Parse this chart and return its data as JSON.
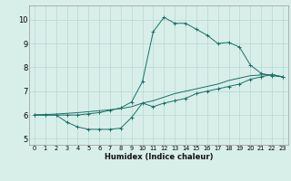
{
  "title": "",
  "xlabel": "Humidex (Indice chaleur)",
  "xlim": [
    -0.5,
    23.5
  ],
  "ylim": [
    4.75,
    10.6
  ],
  "xticks": [
    0,
    1,
    2,
    3,
    4,
    5,
    6,
    7,
    8,
    9,
    10,
    11,
    12,
    13,
    14,
    15,
    16,
    17,
    18,
    19,
    20,
    21,
    22,
    23
  ],
  "yticks": [
    5,
    6,
    7,
    8,
    9,
    10
  ],
  "bg_color": "#d8eee9",
  "line_color": "#1a7068",
  "grid_color": "#b8d8d2",
  "lines": [
    {
      "x": [
        0,
        1,
        2,
        3,
        4,
        5,
        6,
        7,
        8,
        9,
        10,
        11,
        12,
        13,
        14,
        15,
        16,
        17,
        18,
        19,
        20,
        21,
        22,
        23
      ],
      "y": [
        6.0,
        6.0,
        6.0,
        6.0,
        6.0,
        6.05,
        6.1,
        6.2,
        6.3,
        6.55,
        7.4,
        9.5,
        10.1,
        9.85,
        9.85,
        9.6,
        9.35,
        9.0,
        9.05,
        8.85,
        8.1,
        7.75,
        7.65,
        7.6
      ],
      "marker": true,
      "has_markers_at": [
        0,
        1,
        2,
        3,
        4,
        5,
        6,
        7,
        8,
        9,
        10,
        11,
        12,
        13,
        14,
        15,
        16,
        17,
        18,
        19,
        20,
        21,
        22,
        23
      ]
    },
    {
      "x": [
        0,
        1,
        2,
        3,
        4,
        5,
        6,
        7,
        8,
        9,
        10,
        11,
        12,
        13,
        14,
        15,
        16,
        17,
        18,
        19,
        20,
        21,
        22,
        23
      ],
      "y": [
        6.0,
        6.0,
        6.0,
        5.7,
        5.5,
        5.4,
        5.4,
        5.4,
        5.45,
        5.9,
        6.5,
        6.35,
        6.5,
        6.6,
        6.7,
        6.9,
        7.0,
        7.1,
        7.2,
        7.3,
        7.5,
        7.6,
        7.7,
        7.6
      ],
      "marker": true,
      "has_markers_at": [
        0,
        1,
        2,
        3,
        4,
        5,
        6,
        7,
        8,
        9,
        10,
        11,
        12,
        13,
        14,
        15,
        16,
        17,
        18,
        19,
        20,
        21,
        22,
        23
      ]
    },
    {
      "x": [
        0,
        1,
        2,
        3,
        4,
        5,
        6,
        7,
        8,
        9,
        10,
        11,
        12,
        13,
        14,
        15,
        16,
        17,
        18,
        19,
        20,
        21,
        22,
        23
      ],
      "y": [
        6.0,
        6.02,
        6.04,
        6.07,
        6.1,
        6.14,
        6.18,
        6.22,
        6.27,
        6.35,
        6.5,
        6.6,
        6.75,
        6.9,
        7.0,
        7.1,
        7.2,
        7.3,
        7.45,
        7.55,
        7.65,
        7.68,
        7.7,
        7.6
      ],
      "marker": false
    }
  ]
}
